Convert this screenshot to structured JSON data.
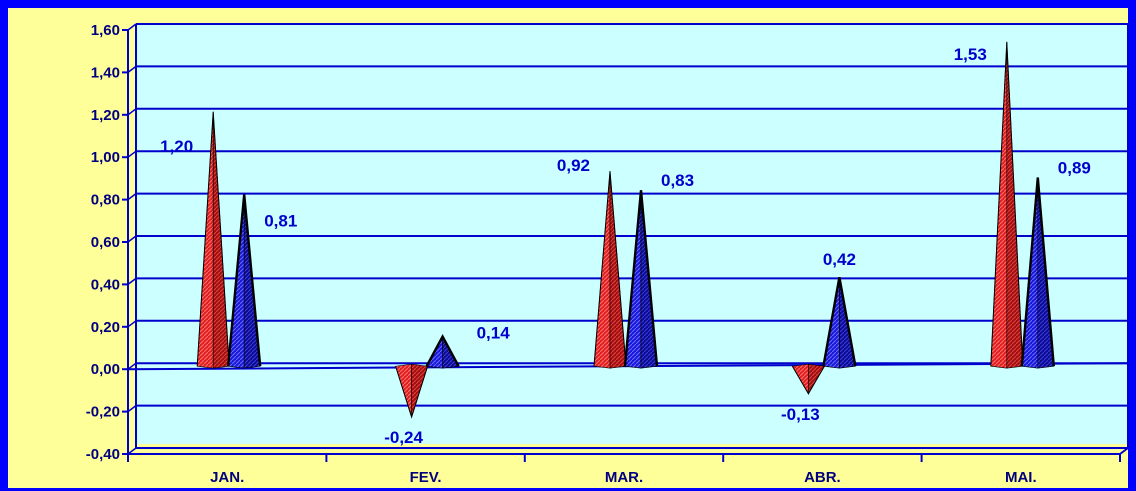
{
  "chart_data": {
    "type": "bar",
    "style": "3d-cone",
    "categories": [
      "JAN.",
      "FEV.",
      "MAR.",
      "ABR.",
      "MAI."
    ],
    "series": [
      {
        "values": [
          1.2,
          -0.24,
          0.92,
          -0.13,
          1.53
        ],
        "labels": [
          "1,20",
          "-0,24",
          "0,92",
          "-0,13",
          "1,53"
        ],
        "color": "#e02020"
      },
      {
        "values": [
          0.81,
          0.14,
          0.83,
          0.42,
          0.89
        ],
        "labels": [
          "0,81",
          "0,14",
          "0,83",
          "0,42",
          "0,89"
        ],
        "color": "#1010d0"
      }
    ],
    "y_ticks": [
      "1,60",
      "1,40",
      "1,20",
      "1,00",
      "0,80",
      "0,60",
      "0,40",
      "0,20",
      "0,00",
      "-0,20",
      "-0,40"
    ],
    "ylim": [
      -0.4,
      1.6
    ],
    "grid": true,
    "legend": "none",
    "plot_background": "#ccffff",
    "outer_background": "#ffff99",
    "border_color": "#0000ff",
    "gridline_color": "#0000cc"
  }
}
